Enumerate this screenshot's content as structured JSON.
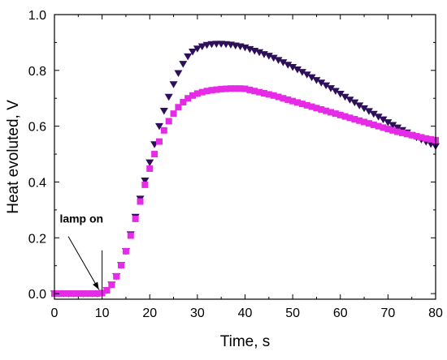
{
  "chart_data": {
    "type": "scatter",
    "xlabel": "Time, s",
    "ylabel": "Heat evoluted, V",
    "xlim": [
      0,
      80
    ],
    "ylim": [
      -0.02,
      1.0
    ],
    "xticks": [
      "0",
      "10",
      "20",
      "30",
      "40",
      "50",
      "60",
      "70",
      "80"
    ],
    "yticks": [
      "0.0",
      "0.2",
      "0.4",
      "0.6",
      "0.8",
      "1.0"
    ],
    "grid": false,
    "legend": "none",
    "annotation": {
      "text": "lamp on",
      "x": 10
    },
    "series": [
      {
        "marker": "triangle-down",
        "color": "#2e0f59",
        "x": [
          0,
          1,
          2,
          3,
          4,
          5,
          6,
          7,
          8,
          9,
          10,
          11,
          12,
          13,
          14,
          15,
          16,
          17,
          18,
          19,
          20,
          21,
          22,
          23,
          24,
          25,
          26,
          27,
          28,
          29,
          30,
          31,
          32,
          33,
          34,
          35,
          36,
          37,
          38,
          39,
          40,
          41,
          42,
          43,
          44,
          45,
          46,
          47,
          48,
          49,
          50,
          51,
          52,
          53,
          54,
          55,
          56,
          57,
          58,
          59,
          60,
          61,
          62,
          63,
          64,
          65,
          66,
          67,
          68,
          69,
          70,
          71,
          72,
          73,
          74,
          75,
          76,
          77,
          78,
          79,
          80
        ],
        "y": [
          0,
          0,
          0,
          0,
          0,
          0,
          0,
          0,
          0,
          0,
          0.002,
          0.012,
          0.032,
          0.062,
          0.102,
          0.152,
          0.212,
          0.275,
          0.34,
          0.405,
          0.47,
          0.535,
          0.6,
          0.655,
          0.705,
          0.75,
          0.79,
          0.823,
          0.85,
          0.867,
          0.878,
          0.886,
          0.891,
          0.894,
          0.895,
          0.895,
          0.894,
          0.892,
          0.889,
          0.886,
          0.882,
          0.876,
          0.87,
          0.865,
          0.858,
          0.852,
          0.845,
          0.837,
          0.829,
          0.82,
          0.812,
          0.803,
          0.794,
          0.785,
          0.775,
          0.765,
          0.756,
          0.746,
          0.736,
          0.726,
          0.716,
          0.705,
          0.695,
          0.685,
          0.674,
          0.664,
          0.654,
          0.644,
          0.634,
          0.624,
          0.614,
          0.604,
          0.595,
          0.586,
          0.577,
          0.568,
          0.56,
          0.552,
          0.544,
          0.536,
          0.528
        ]
      },
      {
        "marker": "square",
        "color": "#e62be6",
        "x": [
          0,
          1,
          2,
          3,
          4,
          5,
          6,
          7,
          8,
          9,
          10,
          11,
          12,
          13,
          14,
          15,
          16,
          17,
          18,
          19,
          20,
          21,
          22,
          23,
          24,
          25,
          26,
          27,
          28,
          29,
          30,
          31,
          32,
          33,
          34,
          35,
          36,
          37,
          38,
          39,
          40,
          41,
          42,
          43,
          44,
          45,
          46,
          47,
          48,
          49,
          50,
          51,
          52,
          53,
          54,
          55,
          56,
          57,
          58,
          59,
          60,
          61,
          62,
          63,
          64,
          65,
          66,
          67,
          68,
          69,
          70,
          71,
          72,
          73,
          74,
          75,
          76,
          77,
          78,
          79,
          80
        ],
        "y": [
          0,
          0,
          0,
          0,
          0,
          0,
          0,
          0,
          0,
          0,
          0.002,
          0.012,
          0.032,
          0.062,
          0.102,
          0.152,
          0.208,
          0.268,
          0.33,
          0.39,
          0.448,
          0.5,
          0.545,
          0.585,
          0.618,
          0.645,
          0.668,
          0.686,
          0.7,
          0.71,
          0.717,
          0.722,
          0.726,
          0.729,
          0.731,
          0.733,
          0.734,
          0.735,
          0.735,
          0.735,
          0.734,
          0.73,
          0.726,
          0.722,
          0.718,
          0.714,
          0.71,
          0.705,
          0.7,
          0.695,
          0.69,
          0.685,
          0.68,
          0.675,
          0.67,
          0.665,
          0.66,
          0.655,
          0.65,
          0.645,
          0.64,
          0.635,
          0.63,
          0.625,
          0.62,
          0.615,
          0.61,
          0.605,
          0.6,
          0.595,
          0.59,
          0.585,
          0.58,
          0.576,
          0.572,
          0.568,
          0.564,
          0.56,
          0.556,
          0.553,
          0.55
        ]
      }
    ]
  }
}
